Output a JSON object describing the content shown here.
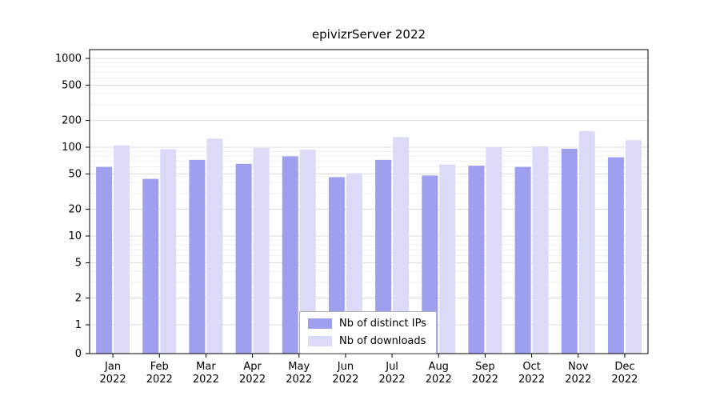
{
  "title": "epivizrServer 2022",
  "legend": {
    "items": [
      {
        "label": "Nb of distinct IPs",
        "color": "#9f9ff0"
      },
      {
        "label": "Nb of downloads",
        "color": "#dbdbf8"
      }
    ]
  },
  "chart_data": {
    "type": "bar",
    "title": "epivizrServer 2022",
    "year": "2022",
    "categories": [
      "Jan",
      "Feb",
      "Mar",
      "Apr",
      "May",
      "Jun",
      "Jul",
      "Aug",
      "Sep",
      "Oct",
      "Nov",
      "Dec"
    ],
    "series": [
      {
        "name": "Nb of distinct IPs",
        "color": "#9f9ff0",
        "values": [
          60,
          44,
          72,
          65,
          79,
          46,
          72,
          48,
          62,
          60,
          96,
          77
        ]
      },
      {
        "name": "Nb of downloads",
        "color": "#dbdbf8",
        "values": [
          105,
          95,
          125,
          98,
          94,
          51,
          130,
          64,
          100,
          102,
          152,
          120
        ]
      }
    ],
    "yscale": "log",
    "yticks": [
      1000,
      500,
      200,
      100,
      50,
      20,
      10,
      5,
      2,
      1,
      0
    ],
    "ylim": [
      0,
      1000
    ],
    "grid": true,
    "legend_position": "lower center",
    "xlabel": "",
    "ylabel": ""
  }
}
